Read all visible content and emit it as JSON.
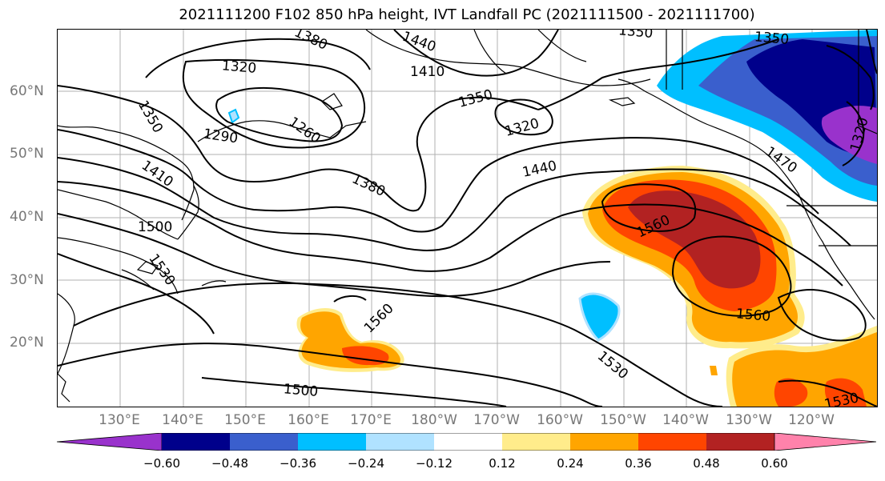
{
  "title": "2021111200 F102 850 hPa height, IVT Landfall PC (2021111500 - 2021111700)",
  "lat_labels": [
    "60°N",
    "50°N",
    "40°N",
    "30°N",
    "20°N"
  ],
  "lon_labels": [
    "130°E",
    "140°E",
    "150°E",
    "160°E",
    "170°E",
    "180°W",
    "170°W",
    "160°W",
    "150°W",
    "140°W",
    "130°W",
    "120°W"
  ],
  "contour_labels": [
    "1380",
    "1440",
    "1320",
    "1410",
    "1350",
    "1290",
    "1260",
    "1350",
    "1320",
    "1350",
    "1440",
    "1380",
    "1470",
    "1320",
    "1410",
    "1500",
    "1530",
    "1560",
    "1560",
    "1560",
    "1530",
    "1500",
    "1530",
    "1350"
  ],
  "colorbar": {
    "tick_labels": [
      "−0.60",
      "−0.48",
      "−0.36",
      "−0.24",
      "−0.12",
      "0.12",
      "0.24",
      "0.36",
      "0.48",
      "0.60"
    ],
    "colors": [
      "#9932CC",
      "#00008B",
      "#3A5FCD",
      "#00BFFF",
      "#B0E2FF",
      "#FFFFFF",
      "#FFEC8B",
      "#FFA500",
      "#FF4500",
      "#B22222",
      "#FF82AB"
    ]
  }
}
